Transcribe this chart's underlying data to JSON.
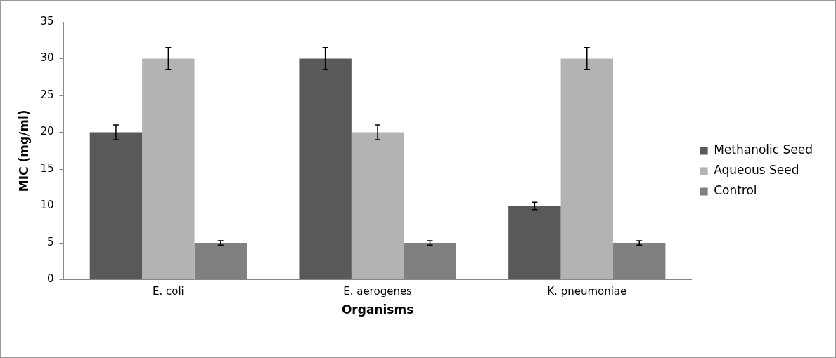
{
  "chart_data": {
    "type": "bar",
    "xlabel": "Organisms",
    "ylabel": "MIC (mg/ml)",
    "categories": [
      "E. coli",
      "E. aerogenes",
      "K. pneumoniae"
    ],
    "series": [
      {
        "name": "Methanolic Seed",
        "color": "#595959",
        "values": [
          20,
          30,
          10
        ],
        "errors": [
          1,
          1.5,
          0.5
        ]
      },
      {
        "name": "Aqueous Seed",
        "color": "#b3b3b3",
        "values": [
          30,
          20,
          30
        ],
        "errors": [
          1.5,
          1,
          1.5
        ]
      },
      {
        "name": "Control",
        "color": "#808080",
        "values": [
          5,
          5,
          5
        ],
        "errors": [
          0.3,
          0.3,
          0.3
        ]
      }
    ],
    "ylim": [
      0,
      35
    ],
    "yticks": [
      0,
      5,
      10,
      15,
      20,
      25,
      30,
      35
    ],
    "grid": false,
    "legend": "right"
  }
}
